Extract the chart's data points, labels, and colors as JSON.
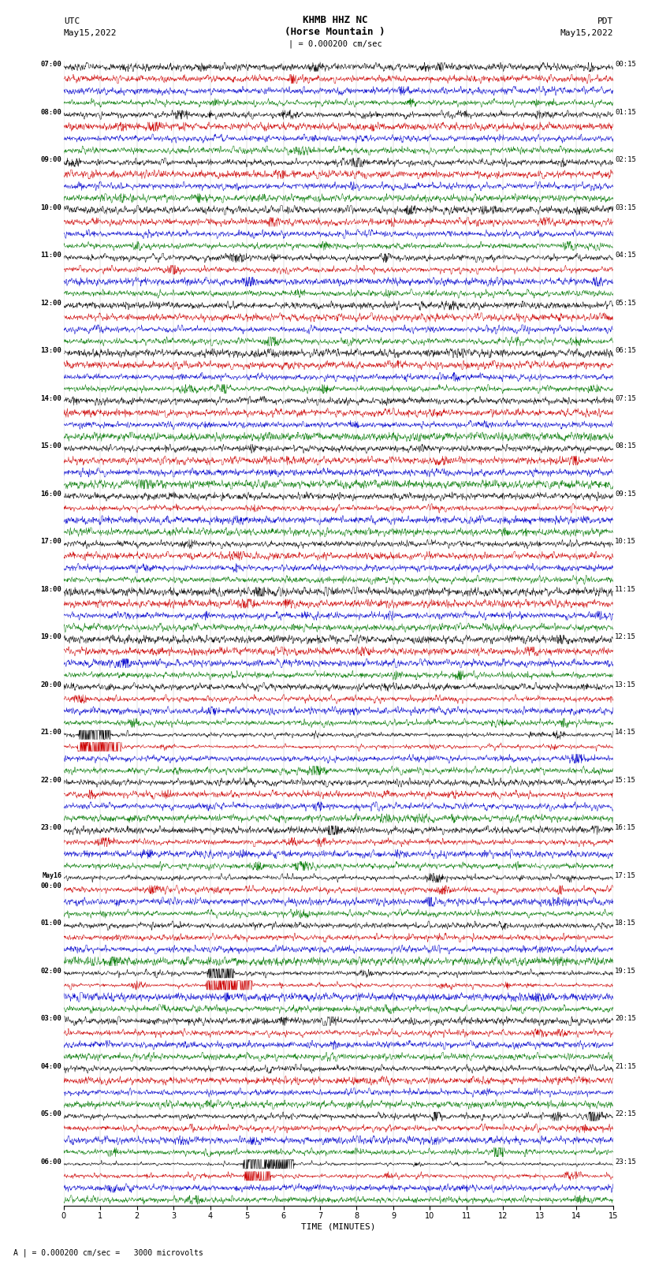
{
  "title_line1": "KHMB HHZ NC",
  "title_line2": "(Horse Mountain )",
  "title_scale": "| = 0.000200 cm/sec",
  "label_left_line1": "UTC",
  "label_left_line2": "May15,2022",
  "label_right_line1": "PDT",
  "label_right_line2": "May15,2022",
  "xlabel": "TIME (MINUTES)",
  "bottom_note": "A | = 0.000200 cm/sec =   3000 microvolts",
  "colors": [
    "#000000",
    "#cc0000",
    "#0000cc",
    "#007700"
  ],
  "fig_width": 8.5,
  "fig_height": 16.13,
  "dpi": 100,
  "left_time_labels": [
    "07:00",
    "",
    "",
    "",
    "08:00",
    "",
    "",
    "",
    "09:00",
    "",
    "",
    "",
    "10:00",
    "",
    "",
    "",
    "11:00",
    "",
    "",
    "",
    "12:00",
    "",
    "",
    "",
    "13:00",
    "",
    "",
    "",
    "14:00",
    "",
    "",
    "",
    "15:00",
    "",
    "",
    "",
    "16:00",
    "",
    "",
    "",
    "17:00",
    "",
    "",
    "",
    "18:00",
    "",
    "",
    "",
    "19:00",
    "",
    "",
    "",
    "20:00",
    "",
    "",
    "",
    "21:00",
    "",
    "",
    "",
    "22:00",
    "",
    "",
    "",
    "23:00",
    "",
    "",
    "",
    "May16\n00:00",
    "",
    "",
    "",
    "01:00",
    "",
    "",
    "",
    "02:00",
    "",
    "",
    "",
    "03:00",
    "",
    "",
    "",
    "04:00",
    "",
    "",
    "",
    "05:00",
    "",
    "",
    "",
    "06:00",
    "",
    "",
    ""
  ],
  "right_time_labels": [
    "00:15",
    "",
    "",
    "",
    "01:15",
    "",
    "",
    "",
    "02:15",
    "",
    "",
    "",
    "03:15",
    "",
    "",
    "",
    "04:15",
    "",
    "",
    "",
    "05:15",
    "",
    "",
    "",
    "06:15",
    "",
    "",
    "",
    "07:15",
    "",
    "",
    "",
    "08:15",
    "",
    "",
    "",
    "09:15",
    "",
    "",
    "",
    "10:15",
    "",
    "",
    "",
    "11:15",
    "",
    "",
    "",
    "12:15",
    "",
    "",
    "",
    "13:15",
    "",
    "",
    "",
    "14:15",
    "",
    "",
    "",
    "15:15",
    "",
    "",
    "",
    "16:15",
    "",
    "",
    "",
    "17:15",
    "",
    "",
    "",
    "18:15",
    "",
    "",
    "",
    "19:15",
    "",
    "",
    "",
    "20:15",
    "",
    "",
    "",
    "21:15",
    "",
    "",
    "",
    "22:15",
    "",
    "",
    "",
    "23:15",
    "",
    "",
    ""
  ],
  "special_rows": {
    "56": {
      "amp_scale": 8.0,
      "event_minute": 0.5
    },
    "57": {
      "amp_scale": 10.0,
      "event_minute": 0.5
    },
    "76": {
      "amp_scale": 6.0,
      "event_minute": 4.0
    },
    "77": {
      "amp_scale": 8.0,
      "event_minute": 4.0
    },
    "92": {
      "amp_scale": 5.0,
      "event_minute": 5.0
    },
    "93": {
      "amp_scale": 4.0,
      "event_minute": 5.0
    }
  }
}
